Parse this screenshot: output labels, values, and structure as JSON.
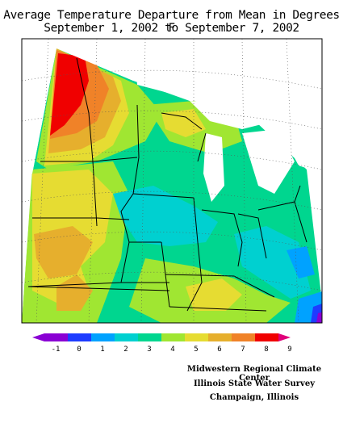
{
  "title": {
    "line1": "Average Temperature Departure from Mean in Degrees F",
    "line2": "September 1, 2002 to September 7, 2002"
  },
  "legend": {
    "labels": [
      "-1",
      "0",
      "1",
      "2",
      "3",
      "4",
      "5",
      "6",
      "7",
      "8",
      "9"
    ],
    "colors": [
      "#8a00d4",
      "#1e3cff",
      "#00a2ff",
      "#00d0d0",
      "#00d68f",
      "#a0e632",
      "#e6dc32",
      "#e6af2d",
      "#f08228",
      "#f00000",
      "#e0007a"
    ]
  },
  "credits": {
    "line1": "Midwestern Regional Climate Center",
    "line2": "Illinois State Water Survey",
    "line3": "Champaign, Illinois"
  }
}
